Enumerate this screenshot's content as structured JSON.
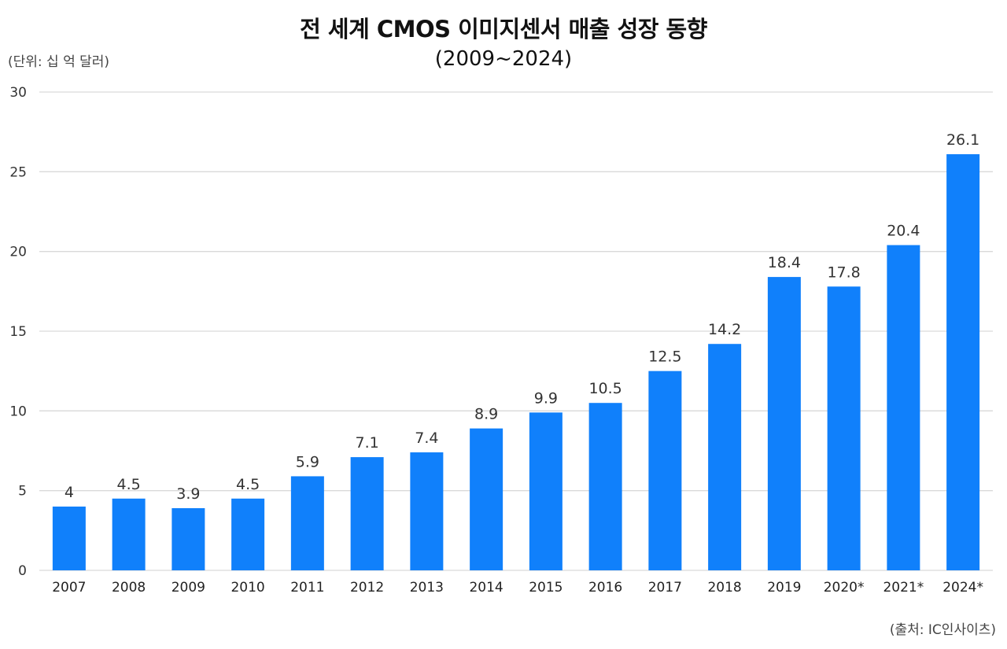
{
  "chart_data": {
    "type": "bar",
    "title": "전 세계 CMOS 이미지센서 매출 성장 동향",
    "subtitle": "(2009~2024)",
    "unit_label": "(단위: 십 억 달러)",
    "source": "(출처: IC인사이츠)",
    "xlabel": "",
    "ylabel": "",
    "ylim": [
      0,
      30
    ],
    "yticks": [
      0,
      5,
      10,
      15,
      20,
      25,
      30
    ],
    "grid": true,
    "legend": "none",
    "categories": [
      "2007",
      "2008",
      "2009",
      "2010",
      "2011",
      "2012",
      "2013",
      "2014",
      "2015",
      "2016",
      "2017",
      "2018",
      "2019",
      "2020*",
      "2021*",
      "2024*"
    ],
    "values": [
      4,
      4.5,
      3.9,
      4.5,
      5.9,
      7.1,
      7.4,
      8.9,
      9.9,
      10.5,
      12.5,
      14.2,
      18.4,
      17.8,
      20.4,
      26.1
    ],
    "data_labels": [
      "4",
      "4.5",
      "3.9",
      "4.5",
      "5.9",
      "7.1",
      "7.4",
      "8.9",
      "9.9",
      "10.5",
      "12.5",
      "14.2",
      "18.4",
      "17.8",
      "20.4",
      "26.1"
    ],
    "highlighted_label_index": 13,
    "colors": {
      "bar": "#1080fb",
      "grid": "#d9d9d9",
      "label": "#333333",
      "highlight_label": "#b01e1e"
    }
  }
}
